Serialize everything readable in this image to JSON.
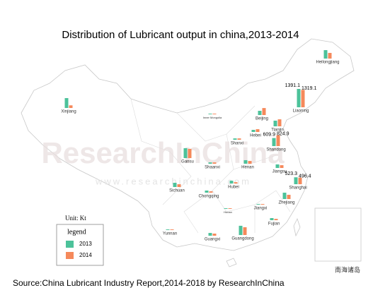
{
  "chart_data": {
    "type": "map-bars",
    "title": "Distribution of Lubricant output in china,2013-2014",
    "source": "Source:China Lubricant Industry Report,2014-2018 by ResearchInChina",
    "unit": "Unit:   Kt",
    "legend_title": "legend",
    "watermark": "ResearchInChina",
    "watermark_url": "www.researchinchina.com",
    "inset_label": "南海诸岛",
    "categories": [
      "Heilongjiang",
      "Xinjiang",
      "Liaoning",
      "Beijing",
      "Tianjin",
      "Hebei",
      "Shanxi",
      "Inner Mongolia",
      "Shandong",
      "Gansu",
      "Shaanxi",
      "Henan",
      "Jiangsu",
      "Shanghai",
      "Sichuan",
      "Hubei",
      "Chongqing",
      "Zhejiang",
      "Jiangxi",
      "Hunan",
      "Fujian",
      "Yunnan",
      "Guangxi",
      "Guangdong"
    ],
    "series": [
      {
        "name": "2013",
        "color": "#4cc29a",
        "values": [
          640,
          750,
          1391.1,
          320,
          430,
          160,
          100,
          50,
          609.9,
          750,
          100,
          270,
          270,
          523.3,
          320,
          210,
          160,
          480,
          50,
          50,
          160,
          50,
          210,
          700
        ],
        "value_labels": [
          null,
          null,
          "1391.1",
          null,
          null,
          null,
          null,
          null,
          "609.9",
          null,
          null,
          null,
          null,
          "523.3",
          null,
          null,
          null,
          null,
          null,
          null,
          null,
          null,
          null,
          null
        ]
      },
      {
        "name": "2014",
        "color": "#f5895b",
        "values": [
          430,
          200,
          1319.1,
          530,
          530,
          210,
          100,
          50,
          824.9,
          700,
          100,
          210,
          210,
          496.4,
          210,
          100,
          100,
          320,
          50,
          50,
          100,
          50,
          160,
          590
        ],
        "value_labels": [
          null,
          null,
          "1319.1",
          null,
          null,
          null,
          null,
          null,
          "824.9",
          null,
          null,
          null,
          null,
          "496.4",
          null,
          null,
          null,
          null,
          null,
          null,
          null,
          null,
          null,
          null
        ]
      }
    ]
  }
}
